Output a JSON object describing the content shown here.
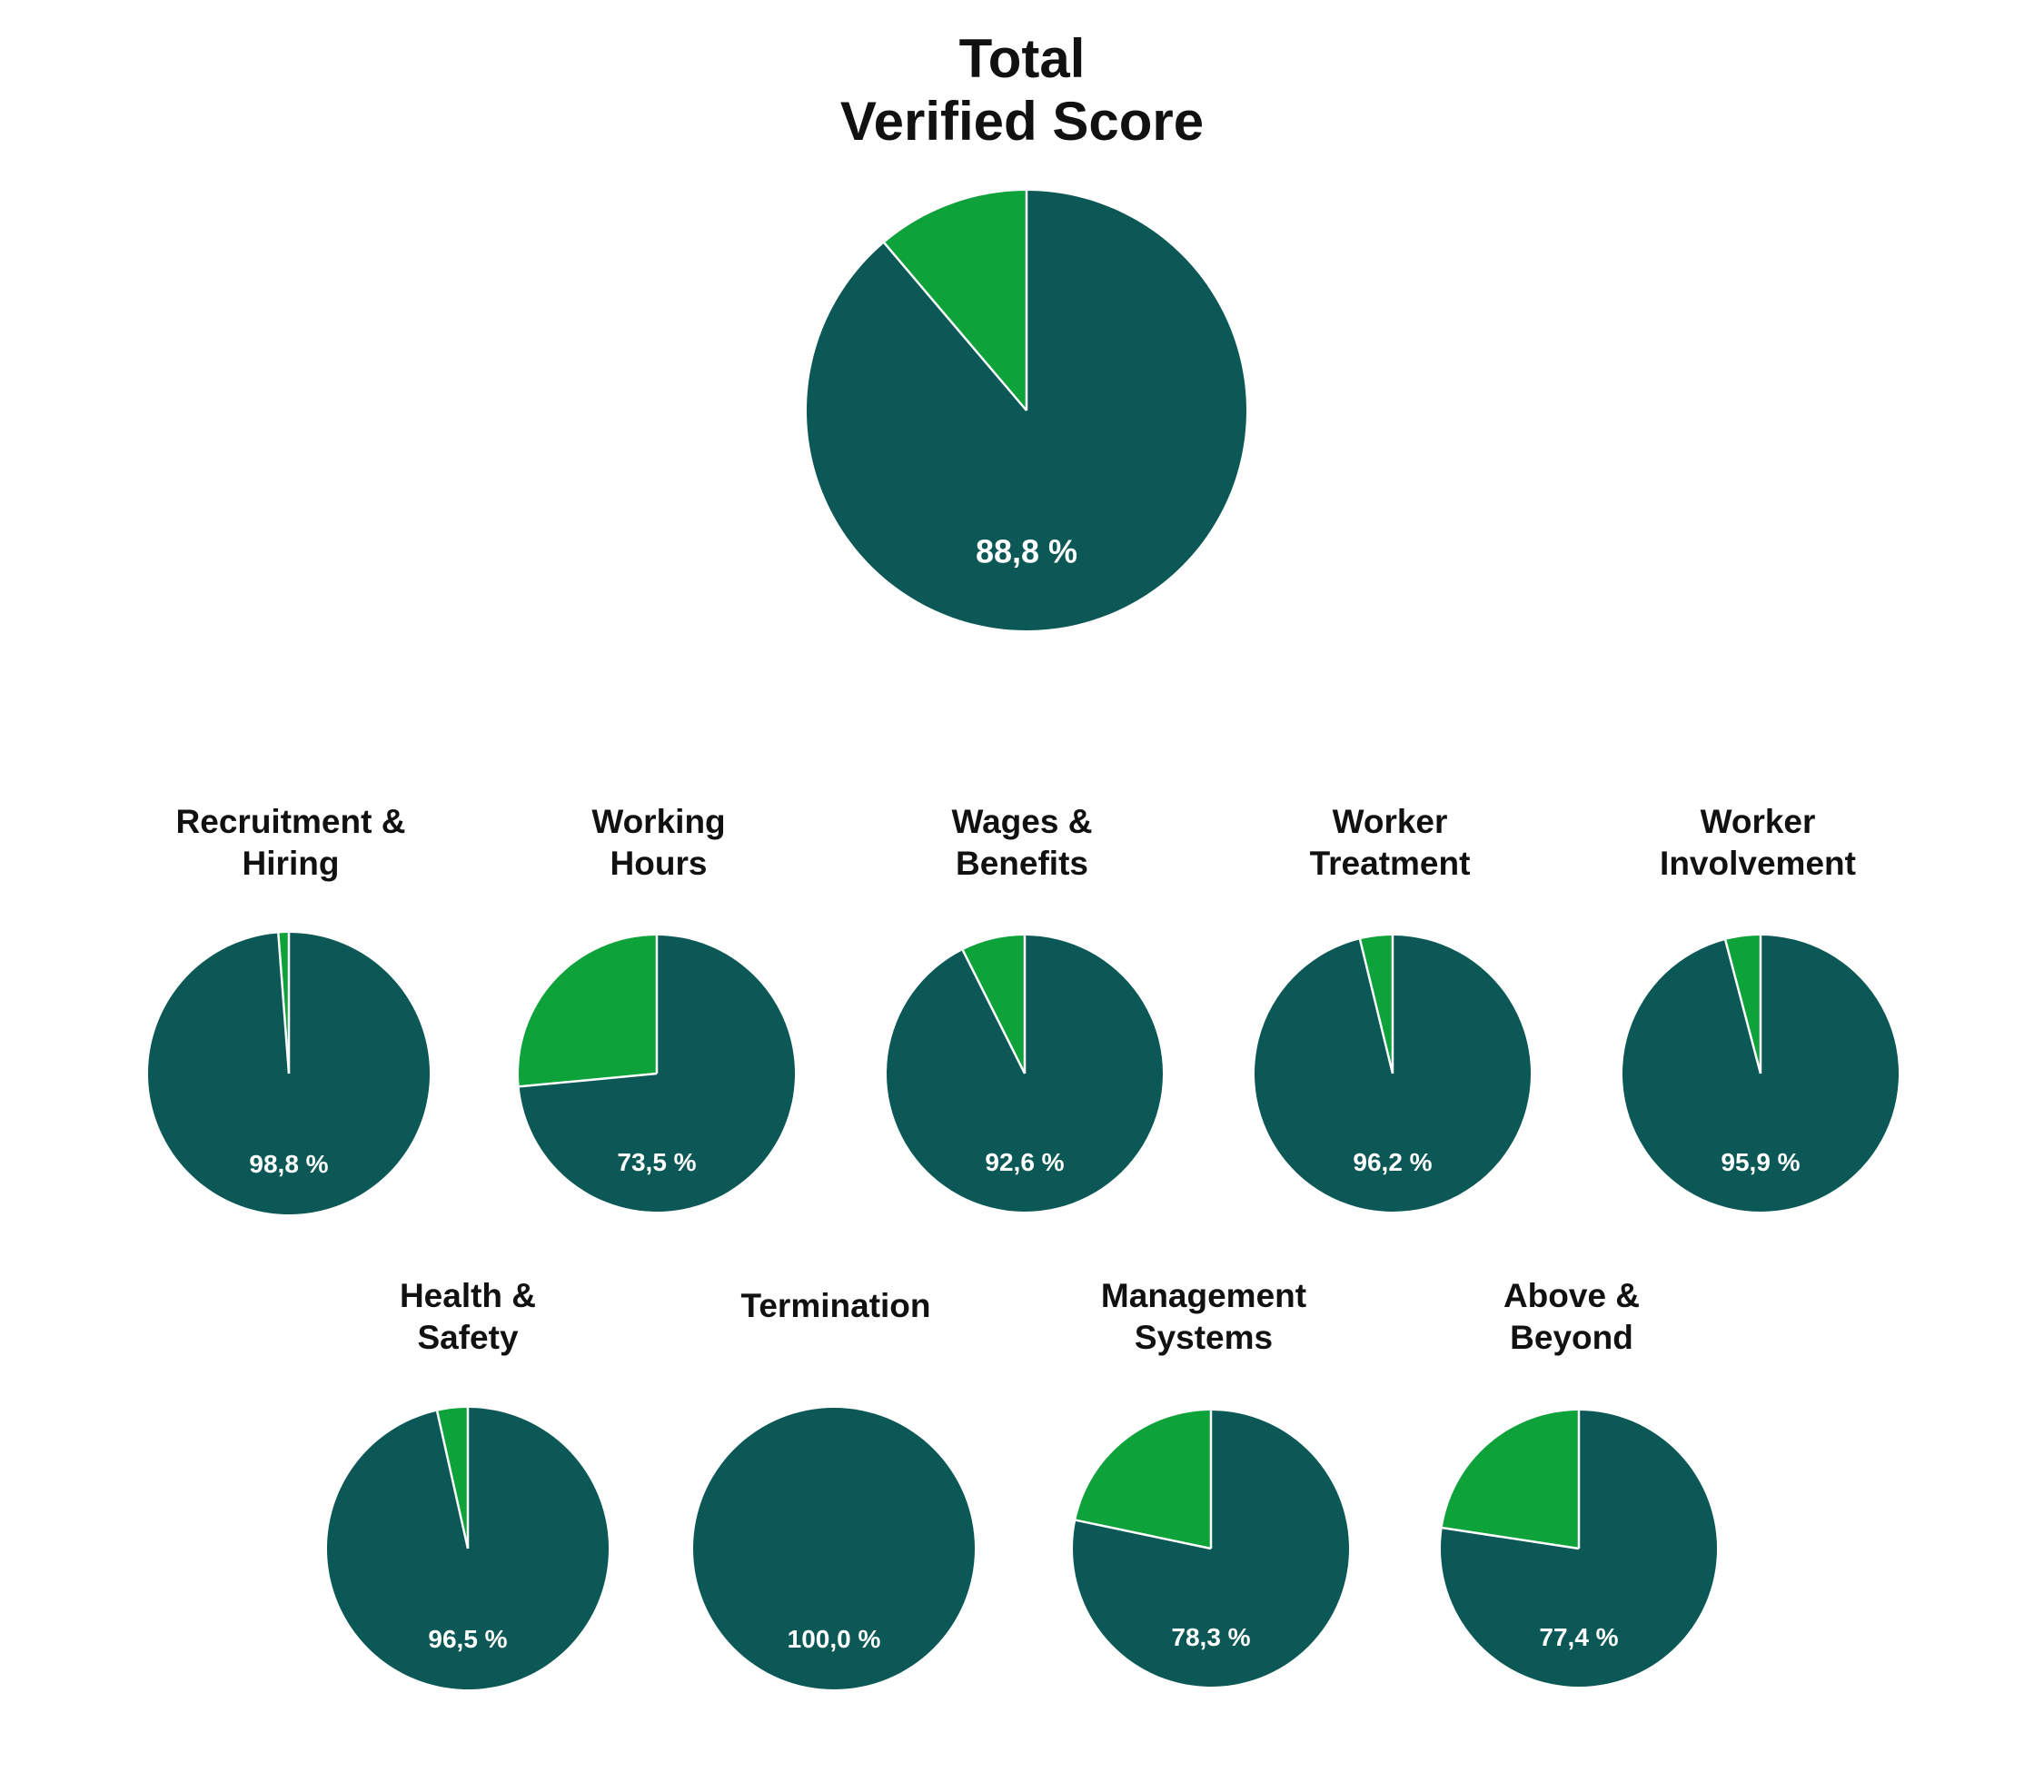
{
  "colors": {
    "score": "#0b5856",
    "remainder": "#0ea23a",
    "divider": "#ffffff"
  },
  "chart_data": [
    {
      "type": "pie",
      "title": [
        "Total",
        "Verified Score"
      ],
      "value": 88.8,
      "label": "88,8 %"
    },
    {
      "type": "pie",
      "title": [
        "Recruitment &",
        "Hiring"
      ],
      "value": 98.8,
      "label": "98,8 %"
    },
    {
      "type": "pie",
      "title": [
        "Working",
        "Hours"
      ],
      "value": 73.5,
      "label": "73,5 %"
    },
    {
      "type": "pie",
      "title": [
        "Wages &",
        "Benefits"
      ],
      "value": 92.6,
      "label": "92,6 %"
    },
    {
      "type": "pie",
      "title": [
        "Worker",
        "Treatment"
      ],
      "value": 96.2,
      "label": "96,2 %"
    },
    {
      "type": "pie",
      "title": [
        "Worker",
        "Involvement"
      ],
      "value": 95.9,
      "label": "95,9 %"
    },
    {
      "type": "pie",
      "title": [
        "Health &",
        "Safety"
      ],
      "value": 96.5,
      "label": "96,5 %"
    },
    {
      "type": "pie",
      "title": [
        "Termination"
      ],
      "value": 100.0,
      "label": "100,0 %"
    },
    {
      "type": "pie",
      "title": [
        "Management",
        "Systems"
      ],
      "value": 78.3,
      "label": "78,3 %"
    },
    {
      "type": "pie",
      "title": [
        "Above &",
        "Beyond"
      ],
      "value": 77.4,
      "label": "77,4 %"
    }
  ]
}
